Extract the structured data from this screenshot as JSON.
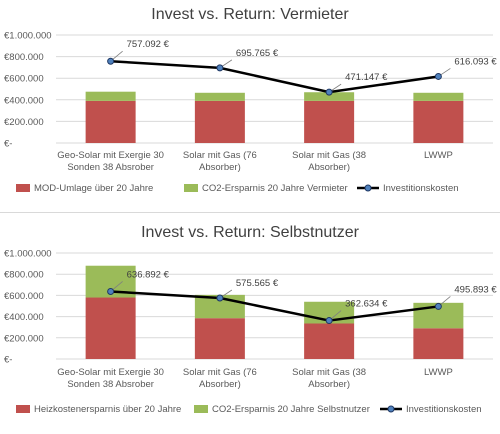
{
  "chart_data": [
    {
      "type": "bar",
      "stacked": true,
      "title": "Invest vs. Return: Vermieter",
      "categories": [
        [
          "Geo-Solar mit Exergie 30",
          "Sonden 38 Absrober"
        ],
        [
          "Solar mit Gas (76",
          "Absorber)"
        ],
        [
          "Solar mit Gas (38",
          "Absorber)"
        ],
        [
          "LWWP"
        ]
      ],
      "y_ticks": [
        "€-",
        "€200.000",
        "€400.000",
        "€600.000",
        "€800.000",
        "€1.000.000"
      ],
      "ylim": [
        0,
        1000000
      ],
      "grid": true,
      "legend_position": "bottom",
      "series": [
        {
          "name": "MOD-Umlage über 20 Jahre",
          "kind": "bar",
          "color": "#c0504d",
          "values": [
            390000,
            390000,
            390000,
            390000
          ]
        },
        {
          "name": "CO2-Ersparnis 20 Jahre Vermieter",
          "kind": "bar",
          "color": "#9bbb59",
          "values": [
            85000,
            75000,
            80000,
            75000
          ]
        },
        {
          "name": "Investitionskosten",
          "kind": "line",
          "color": "#000000",
          "marker_color": "#4f81bd",
          "values": [
            757092,
            695765,
            471147,
            616093
          ],
          "labels": [
            "757.092 €",
            "695.765 €",
            "471.147 €",
            "616.093 €"
          ]
        }
      ]
    },
    {
      "type": "bar",
      "stacked": true,
      "title": "Invest vs. Return: Selbstnutzer",
      "categories": [
        [
          "Geo-Solar mit Exergie 30",
          "Sonden 38 Absrober"
        ],
        [
          "Solar mit Gas (76",
          "Absorber)"
        ],
        [
          "Solar mit Gas (38",
          "Absorber)"
        ],
        [
          "LWWP"
        ]
      ],
      "y_ticks": [
        "€-",
        "€200.000",
        "€400.000",
        "€600.000",
        "€800.000",
        "€1.000.000"
      ],
      "ylim": [
        0,
        1000000
      ],
      "grid": true,
      "legend_position": "bottom",
      "series": [
        {
          "name": "Heizkostenersparnis über 20 Jahre",
          "kind": "bar",
          "color": "#c0504d",
          "values": [
            580000,
            385000,
            335000,
            290000
          ]
        },
        {
          "name": "CO2-Ersparnis 20 Jahre Selbstnutzer",
          "kind": "bar",
          "color": "#9bbb59",
          "values": [
            300000,
            220000,
            205000,
            240000
          ]
        },
        {
          "name": "Investitionskosten",
          "kind": "line",
          "color": "#000000",
          "marker_color": "#4f81bd",
          "values": [
            636892,
            575565,
            362634,
            495893
          ],
          "labels": [
            "636.892 €",
            "575.565 €",
            "362.634 €",
            "495.893 €"
          ]
        }
      ]
    }
  ]
}
